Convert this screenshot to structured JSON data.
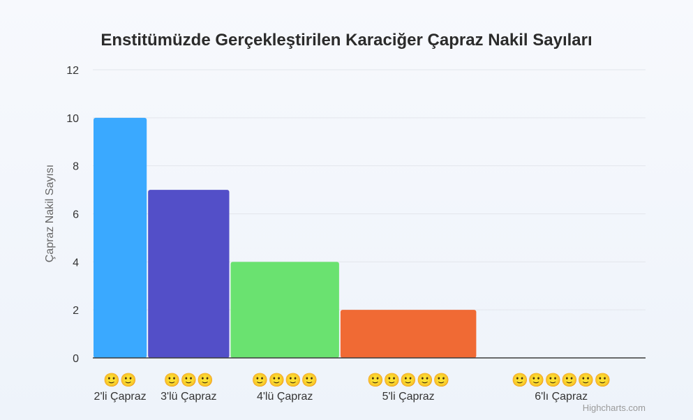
{
  "chart_data": {
    "type": "bar",
    "title": "Enstitümüzde Gerçekleştirilen Karaciğer Çapraz Nakil Sayıları",
    "xlabel": "",
    "ylabel": "Çapraz Nakil Sayısı",
    "categories": [
      "2'li Çapraz",
      "3'lü Çapraz",
      "4'lü Çapraz",
      "5'li Çapraz",
      "6'lı Çapraz"
    ],
    "category_emoji": [
      "🙂🙂",
      "🙂🙂🙂",
      "🙂🙂🙂🙂",
      "🙂🙂🙂🙂🙂",
      "🙂🙂🙂🙂🙂🙂"
    ],
    "values": [
      10,
      7,
      4,
      2,
      0
    ],
    "colors": [
      "#3aa9ff",
      "#534fc8",
      "#6ae270",
      "#f06a34",
      "#6a6a6a"
    ],
    "ylim": [
      0,
      12
    ],
    "yticks": [
      0,
      2,
      4,
      6,
      8,
      10,
      12
    ],
    "grid": true,
    "legend": "none"
  },
  "credit": "Highcharts.com"
}
